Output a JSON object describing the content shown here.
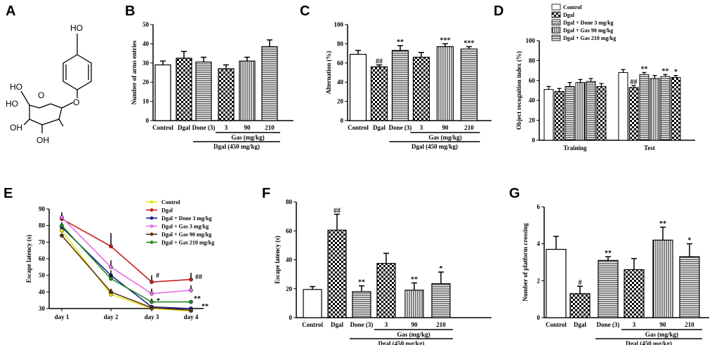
{
  "panel_labels": [
    "A",
    "B",
    "C",
    "D",
    "E",
    "F",
    "G"
  ],
  "molecule": {
    "labels": [
      "HO",
      "HO",
      "HO",
      "OH",
      "O",
      "O",
      "OH"
    ]
  },
  "chart_data": [
    {
      "id": "B",
      "type": "bar",
      "ylabel": "Number of arms entries",
      "ylim": [
        0,
        50
      ],
      "yticks": [
        0,
        10,
        20,
        30,
        40,
        50
      ],
      "categories": [
        "Control",
        "Dgal",
        "Done (3)",
        "3",
        "90",
        "210"
      ],
      "values": [
        29,
        32.5,
        30.5,
        27,
        31,
        38.5
      ],
      "errors": [
        2,
        3.5,
        2.5,
        2,
        2,
        3.5
      ],
      "patterns": [
        "white",
        "check",
        "hlines",
        "check",
        "vlines",
        "hlines"
      ],
      "sig": [
        "",
        "",
        "",
        "",
        "",
        ""
      ],
      "group_label": "Gas (mg/kg)",
      "dgal_label": "Dgal (450 mg/kg)"
    },
    {
      "id": "C",
      "type": "bar",
      "ylabel": "Alternation (%)",
      "ylim": [
        0,
        100
      ],
      "yticks": [
        0,
        20,
        40,
        60,
        80,
        100
      ],
      "categories": [
        "Control",
        "Dgal",
        "Done (3)",
        "3",
        "90",
        "210"
      ],
      "values": [
        69,
        56,
        73,
        66,
        77,
        74.5
      ],
      "errors": [
        4,
        2,
        5,
        5,
        3,
        2.5
      ],
      "patterns": [
        "white",
        "check",
        "hlines",
        "check",
        "vlines",
        "hlines"
      ],
      "sig": [
        "",
        "##",
        "**",
        "",
        "***",
        "***"
      ],
      "group_label": "Gas (mg/kg)",
      "dgal_label": "Dgal (450 mg/kg)"
    },
    {
      "id": "D",
      "type": "bar",
      "ylabel": "Object recognition index (%)",
      "ylim": [
        0,
        100
      ],
      "yticks": [
        0,
        20,
        40,
        60,
        80,
        100
      ],
      "groups": [
        "Training",
        "Test"
      ],
      "series": [
        {
          "name": "Control",
          "values": [
            51,
            68
          ],
          "errors": [
            3,
            3
          ]
        },
        {
          "name": "Dgal",
          "values": [
            49,
            53
          ],
          "errors": [
            3,
            2
          ]
        },
        {
          "name": "Dgal + Done 3 mg/kg",
          "values": [
            54,
            66
          ],
          "errors": [
            4,
            2
          ]
        },
        {
          "name": "Dgal + Gas 90 mg/kg",
          "values": [
            58,
            62
          ],
          "errors": [
            3,
            3
          ]
        },
        {
          "name": "Dgal + Gas 210 mg/kg",
          "values": [
            59,
            64
          ],
          "errors": [
            3,
            2
          ]
        },
        {
          "name": "",
          "values": [
            54,
            63
          ],
          "errors": [
            3,
            2
          ]
        }
      ],
      "patterns": [
        "white",
        "check",
        "hlines",
        "vlines",
        "hlines",
        "check"
      ],
      "sig": [
        [
          "",
          "",
          "",
          "",
          "",
          ""
        ],
        [
          "",
          "##",
          "**",
          "",
          "**",
          "*"
        ]
      ]
    },
    {
      "id": "E",
      "type": "line",
      "ylabel": "Escape latency (s)",
      "ylim": [
        30,
        90
      ],
      "yticks": [
        30,
        40,
        50,
        60,
        70,
        80,
        90
      ],
      "x": [
        "day 1",
        "day 2",
        "day 3",
        "day 4"
      ],
      "series": [
        {
          "name": "Control",
          "color": "#e6e619",
          "values": [
            77,
            38.5,
            30,
            28.5
          ],
          "errors": [
            2,
            1,
            0.5,
            1
          ]
        },
        {
          "name": "Dgal",
          "color": "#c81e1e",
          "values": [
            84,
            67.5,
            46,
            47.5
          ],
          "errors": [
            3,
            8,
            4,
            4
          ]
        },
        {
          "name": "Dgal + Done 3 mg/kg",
          "color": "#1e1e96",
          "values": [
            79,
            50,
            31,
            30
          ],
          "errors": [
            2,
            3,
            1,
            1
          ]
        },
        {
          "name": "Dgal + Gas 3 mg/kg",
          "color": "#e66ee6",
          "values": [
            85,
            55,
            39,
            41
          ],
          "errors": [
            3,
            4,
            3,
            3
          ]
        },
        {
          "name": "Dgal + Gas 90 mg/kg",
          "color": "#5a3214",
          "values": [
            74,
            40,
            30.5,
            29
          ],
          "errors": [
            1,
            2,
            1,
            1
          ]
        },
        {
          "name": "Dgal + Gas 210 mg/kg",
          "color": "#1e8c1e",
          "values": [
            80,
            48,
            34,
            34
          ],
          "errors": [
            2,
            3,
            2,
            1
          ]
        }
      ],
      "annotations": [
        "#",
        "##",
        "*",
        "**",
        "**"
      ]
    },
    {
      "id": "F",
      "type": "bar",
      "ylabel": "Escape latency (s)",
      "ylim": [
        0,
        80
      ],
      "yticks": [
        0,
        20,
        40,
        60,
        80
      ],
      "categories": [
        "Control",
        "Dgal",
        "Done (3)",
        "3",
        "90",
        "210"
      ],
      "values": [
        19.5,
        60.5,
        18,
        37.5,
        19,
        23.5
      ],
      "errors": [
        2,
        11,
        4,
        7,
        5,
        8
      ],
      "patterns": [
        "white",
        "check",
        "hlines",
        "check",
        "vlines",
        "hlines"
      ],
      "sig": [
        "",
        "##",
        "**",
        "",
        "**",
        "*"
      ],
      "group_label": "Gas (mg/kg)",
      "dgal_label": "Dgal (450 mg/kg)"
    },
    {
      "id": "G",
      "type": "bar",
      "ylabel": "Number of platform crossing",
      "ylim": [
        0,
        6
      ],
      "yticks": [
        0,
        2,
        4,
        6
      ],
      "categories": [
        "Control",
        "Dgal",
        "Done (3)",
        "3",
        "90",
        "210"
      ],
      "values": [
        3.7,
        1.3,
        3.1,
        2.6,
        4.2,
        3.3
      ],
      "errors": [
        0.7,
        0.4,
        0.2,
        0.6,
        0.7,
        0.7
      ],
      "patterns": [
        "white",
        "check",
        "hlines",
        "check",
        "vlines",
        "hlines"
      ],
      "sig": [
        "",
        "#",
        "**",
        "",
        "**",
        "*"
      ],
      "group_label": "Gas (mg/kg)",
      "dgal_label": "Dgal (450 mg/kg)"
    }
  ]
}
